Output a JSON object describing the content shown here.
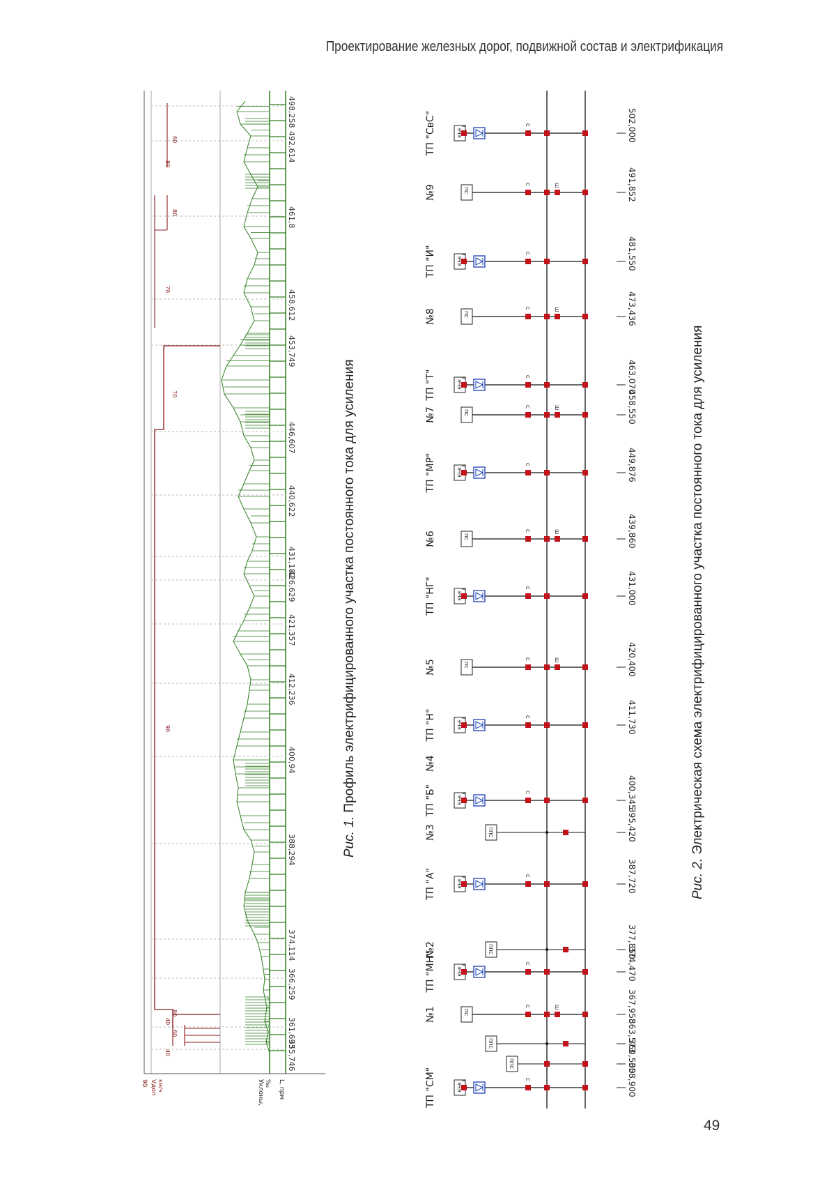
{
  "header": {
    "running_title": "Проектирование железных дорог, подвижной состав и электрификация"
  },
  "page_number": "49",
  "figure1": {
    "caption_label": "Рис. 1.",
    "caption_text": " Профиль электрифицированного участка постоянного тока для усиления",
    "left_labels": [
      "90",
      "Vдоп",
      "км/ч",
      "Уклоны,",
      "‰",
      "L, прм"
    ],
    "km_marks": [
      "355,746",
      "361,693",
      "366,259",
      "374,114",
      "388,294",
      "400,94",
      "412,236",
      "421,357",
      "426,629",
      "431,182",
      "440,622",
      "446,607",
      "453,749",
      "458,612",
      "461,8",
      "492,614",
      "498,258"
    ],
    "speed_labels": [
      "40",
      "60",
      "40",
      "80",
      "90",
      "70",
      "70",
      "80",
      "80",
      "60"
    ]
  },
  "figure2": {
    "caption_label": "Рис. 2.",
    "caption_text": " Электрическая схема электрифицированного участка постоянного тока для усиления",
    "stations": [
      "ТП \"СМ\"",
      "№1",
      "ТП \"МН\"",
      "№2",
      "ТП \"А\"",
      "№3",
      "ТП \"Б\"",
      "№4",
      "ТП \"Н\"",
      "№5",
      "ТП \"НГ\"",
      "№6",
      "ТП \"МР\"",
      "№7",
      "ТП \"Т\"",
      "№8",
      "ТП \"И\"",
      "№9",
      "ТП \"СвС\""
    ],
    "km_marks": [
      "358,900",
      "360,500",
      "363,573",
      "367,958",
      "374,470",
      "377,850",
      "387,720",
      "395,420",
      "400,345",
      "411,730",
      "420,400",
      "431,000",
      "439,860",
      "449,876",
      "458,550",
      "463,070",
      "473,436",
      "481,550",
      "491,852",
      "502,000"
    ],
    "box_labels": {
      "substation": "ЭЧЭ",
      "sectioning": "ПС",
      "parallel": "ППС"
    }
  }
}
